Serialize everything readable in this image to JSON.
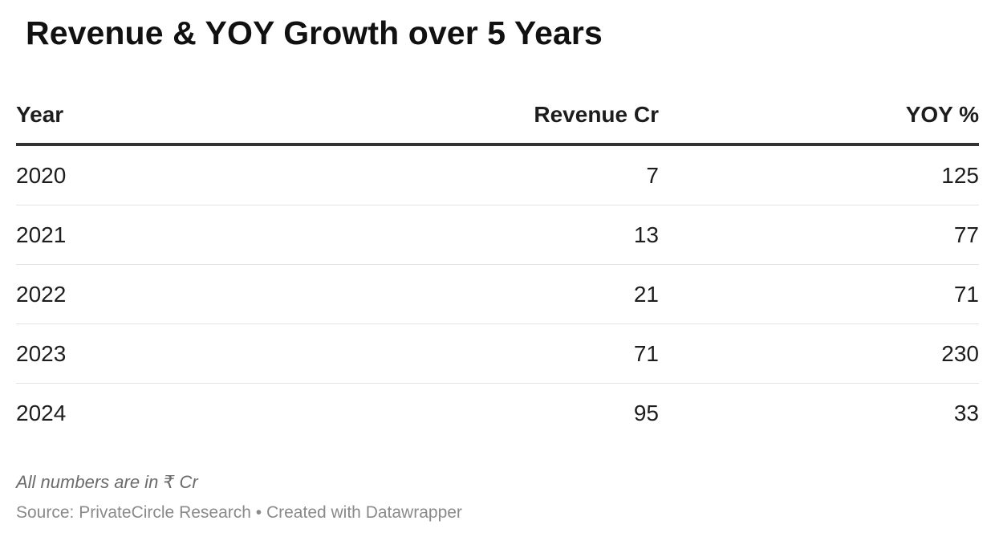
{
  "chart_data": {
    "type": "table",
    "title": "Revenue & YOY Growth over 5 Years",
    "columns": [
      "Year",
      "Revenue Cr",
      "YOY %"
    ],
    "rows": [
      [
        "2020",
        "7",
        "125"
      ],
      [
        "2021",
        "13",
        "77"
      ],
      [
        "2022",
        "21",
        "71"
      ],
      [
        "2023",
        "71",
        "230"
      ],
      [
        "2024",
        "95",
        "33"
      ]
    ],
    "notes": "All numbers are in ₹ Cr",
    "source": "Source: PrivateCircle Research • Created with Datawrapper"
  }
}
